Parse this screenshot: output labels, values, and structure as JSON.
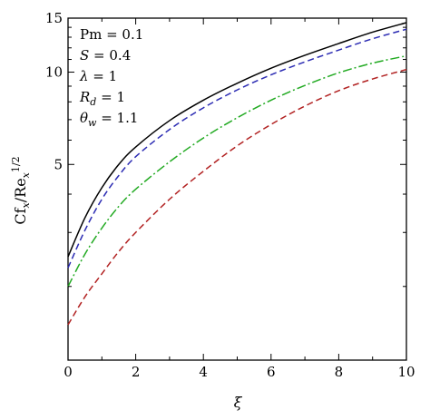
{
  "chart_data": {
    "type": "line",
    "xlabel": "ξ",
    "ylabel": {
      "base": "Cf",
      "sub1": "x",
      "mid": "/Re",
      "sub2": "x",
      "sup": "1/2"
    },
    "xlim": [
      0,
      10
    ],
    "ylim": [
      1.15,
      15
    ],
    "yscale": "log",
    "x_ticks": [
      0,
      2,
      4,
      6,
      8,
      10
    ],
    "y_ticks": [
      5,
      10,
      15
    ],
    "grid": false,
    "legend": "none",
    "annotations": [
      {
        "sym": "Pm",
        "italic": false,
        "sub": "",
        "val": " = 0.1"
      },
      {
        "sym": "S",
        "italic": true,
        "sub": "",
        "val": " = 0.4"
      },
      {
        "sym": "λ",
        "italic": true,
        "sub": "",
        "val": " = 1"
      },
      {
        "sym": "R",
        "italic": true,
        "sub": "d",
        "val": " = 1"
      },
      {
        "sym": "θ",
        "italic": true,
        "sub": "w",
        "val": " = 1.1"
      }
    ],
    "series": [
      {
        "color": "#000000",
        "dash": "",
        "x": [
          0,
          0.5,
          1,
          1.5,
          2,
          3,
          4,
          5,
          6,
          7,
          8,
          9,
          10
        ],
        "y": [
          2.5,
          3.35,
          4.2,
          5.0,
          5.7,
          6.95,
          8.1,
          9.2,
          10.3,
          11.35,
          12.4,
          13.5,
          14.5
        ]
      },
      {
        "color": "#2b2bb3",
        "dash": "7,4",
        "x": [
          0,
          0.5,
          1,
          1.5,
          2,
          3,
          4,
          5,
          6,
          7,
          8,
          9,
          10
        ],
        "y": [
          2.3,
          3.05,
          3.85,
          4.6,
          5.3,
          6.5,
          7.65,
          8.75,
          9.8,
          10.8,
          11.8,
          12.85,
          13.8
        ]
      },
      {
        "color": "#22aa22",
        "dash": "10,3,2,3",
        "x": [
          0,
          0.5,
          1,
          1.5,
          2,
          3,
          4,
          5,
          6,
          7,
          8,
          9,
          10
        ],
        "y": [
          2.0,
          2.55,
          3.1,
          3.65,
          4.15,
          5.1,
          6.1,
          7.1,
          8.1,
          9.05,
          9.95,
          10.7,
          11.3
        ]
      },
      {
        "color": "#b22222",
        "dash": "7,4",
        "x": [
          0,
          0.5,
          1,
          1.5,
          2,
          3,
          4,
          5,
          6,
          7,
          8,
          9,
          10
        ],
        "y": [
          1.5,
          1.85,
          2.2,
          2.6,
          3.0,
          3.85,
          4.75,
          5.75,
          6.75,
          7.75,
          8.7,
          9.5,
          10.2
        ]
      }
    ]
  }
}
